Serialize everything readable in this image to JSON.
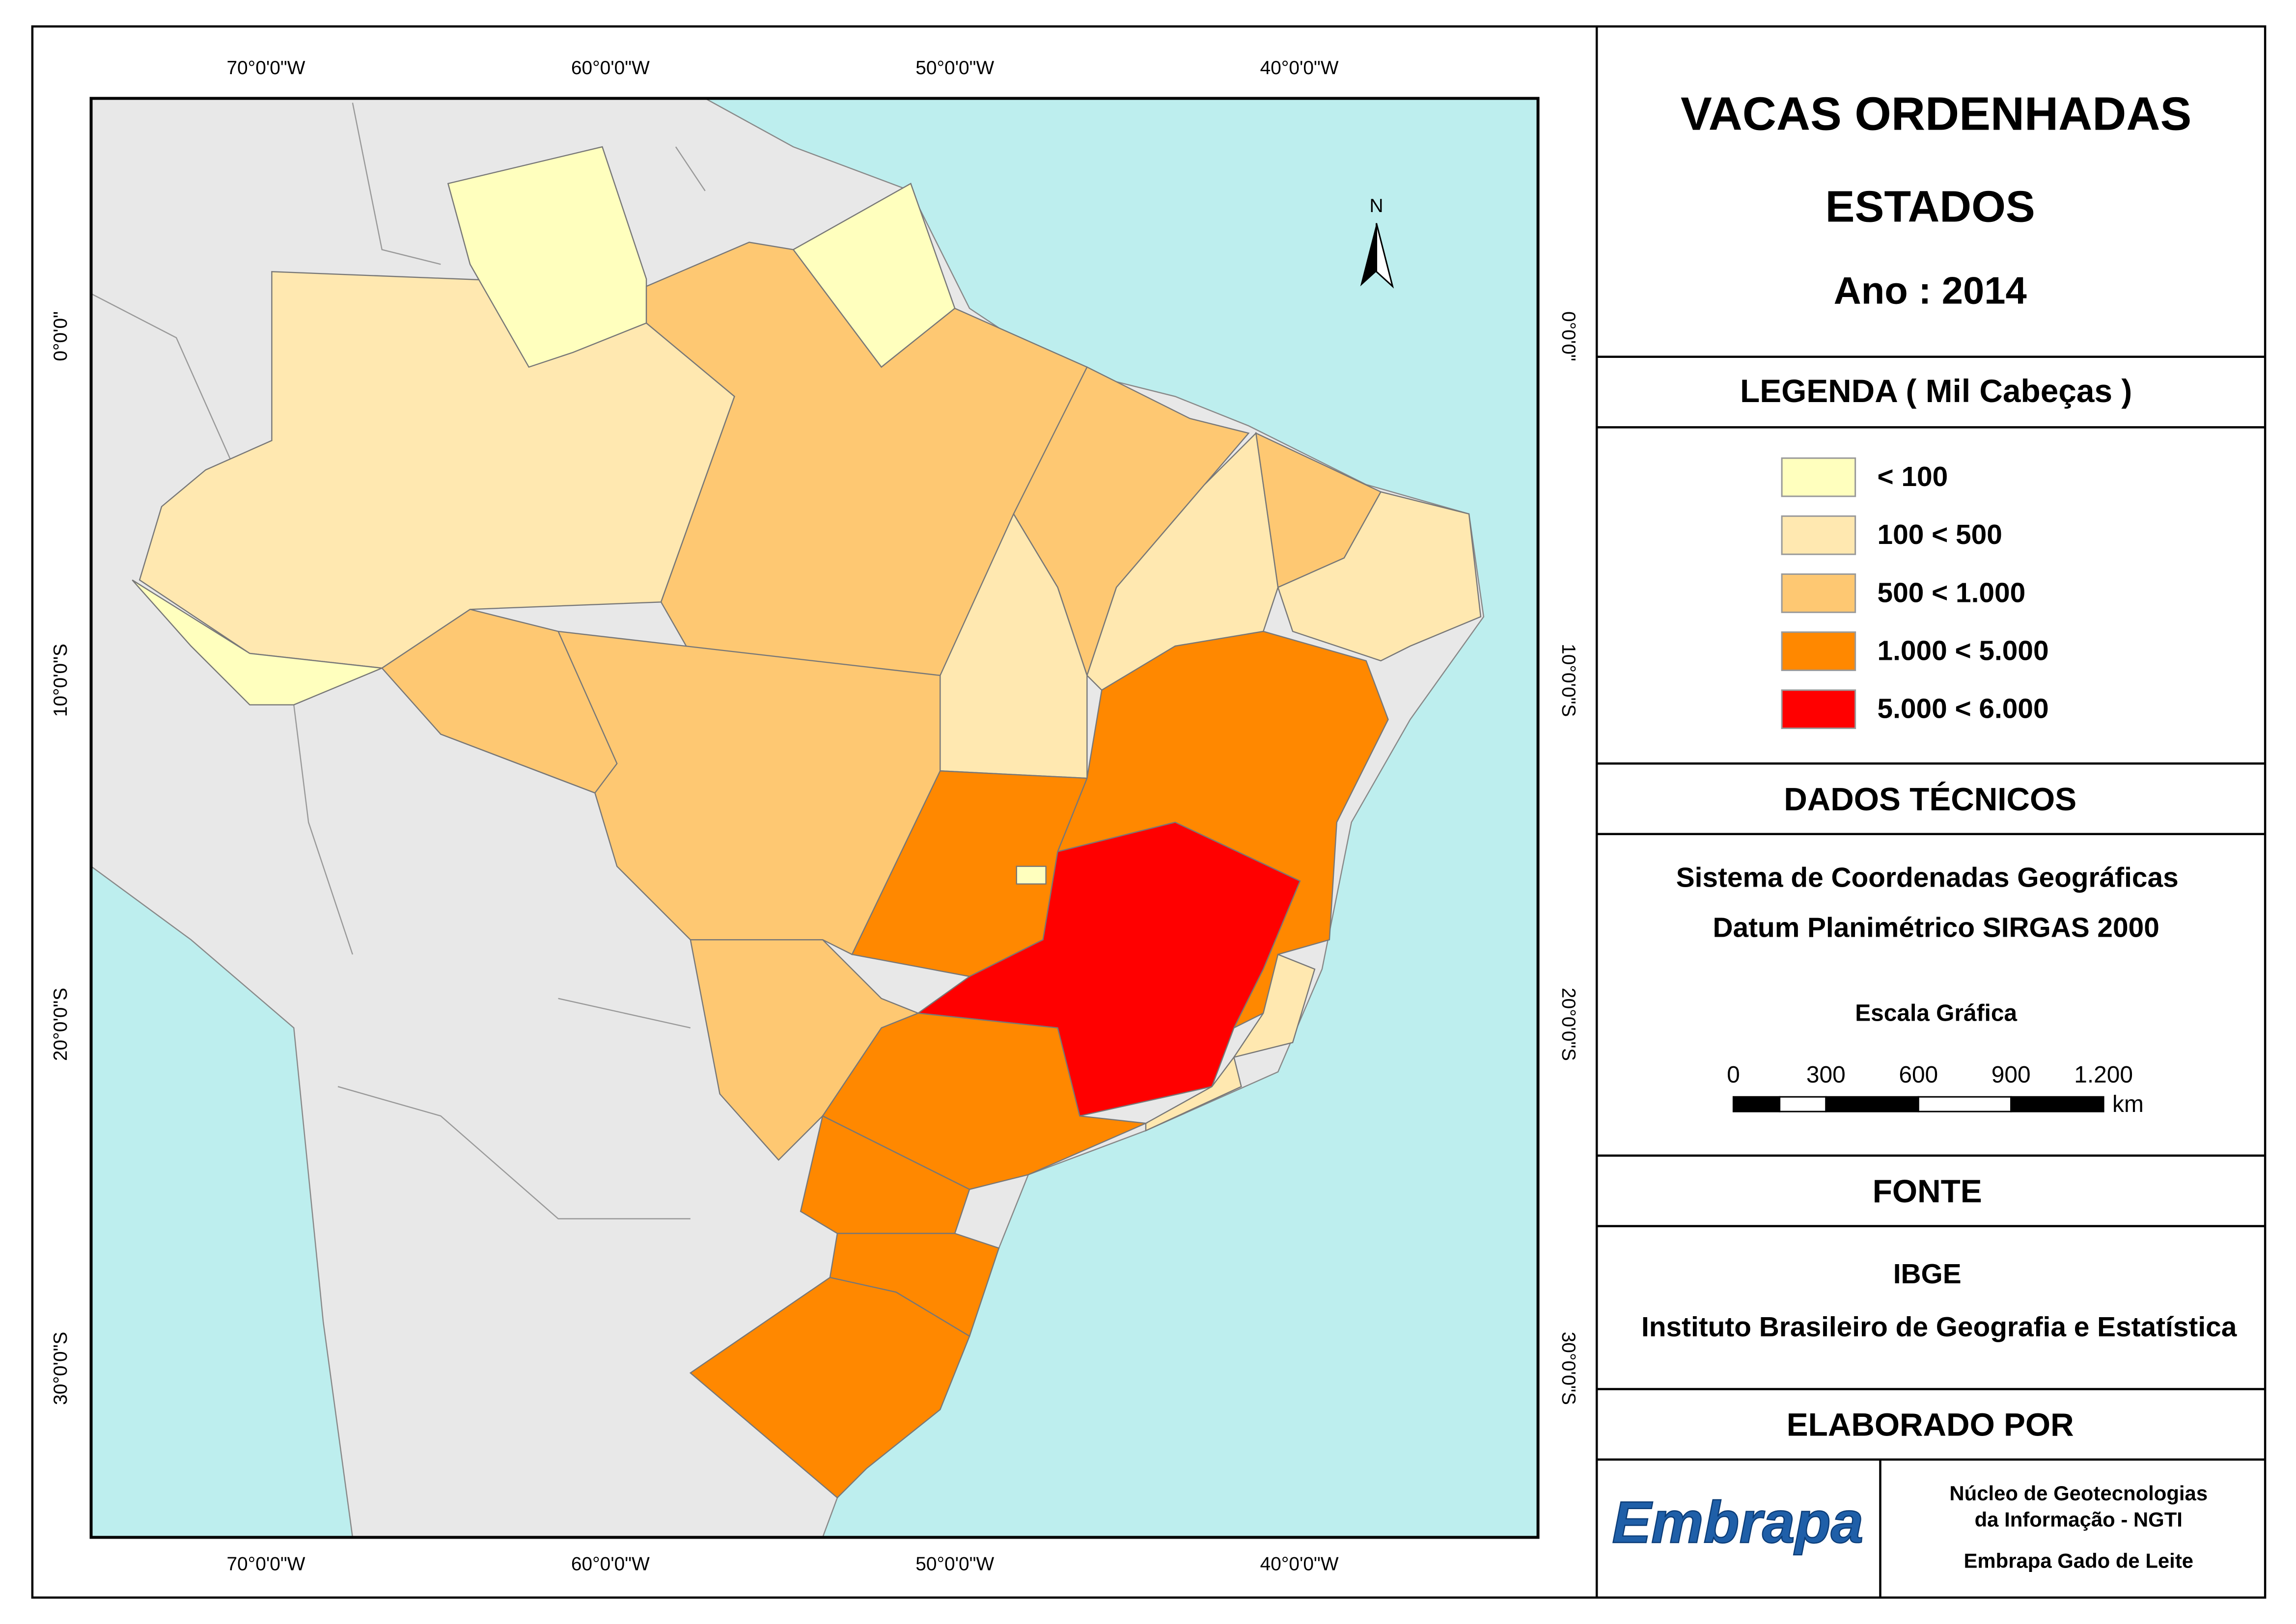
{
  "title": "VACAS ORDENHADAS",
  "subtitle": "ESTADOS",
  "year": "Ano : 2014",
  "map": {
    "north": "N",
    "longitude_labels": [
      "70°0'0\"W",
      "60°0'0\"W",
      "50°0'0\"W",
      "40°0'0\"W"
    ],
    "latitude_labels": [
      "0°0'0\"",
      "10°0'0\"S",
      "20°0'0\"S",
      "30°0'0\"S"
    ]
  },
  "legend": {
    "heading": "LEGENDA ( Mil Cabeças )",
    "items": [
      {
        "label": "< 100",
        "color": "#ffffbe"
      },
      {
        "label": "100 < 500",
        "color": "#ffe8b0"
      },
      {
        "label": "500 < 1.000",
        "color": "#fec872"
      },
      {
        "label": "1.000 < 5.000",
        "color": "#ff8800"
      },
      {
        "label": "5.000 < 6.000",
        "color": "#ff0000"
      }
    ]
  },
  "technical": {
    "heading": "DADOS TÉCNICOS",
    "lines": [
      "Sistema de Coordenadas Geográficas",
      "Datum Planimétrico SIRGAS 2000"
    ],
    "scale_title": "Escala Gráfica",
    "scale_ticks": [
      "0",
      "300",
      "600",
      "900",
      "1.200"
    ],
    "scale_unit": "km"
  },
  "source": {
    "heading": "FONTE",
    "lines": [
      "IBGE",
      "Instituto Brasileiro de Geografia e Estatística"
    ]
  },
  "author": {
    "heading": "ELABORADO POR",
    "logo": "Embrapa",
    "lines": [
      "Núcleo de Geotecnologias",
      "da Informação - NGTI",
      "Embrapa Gado de Leite"
    ]
  }
}
